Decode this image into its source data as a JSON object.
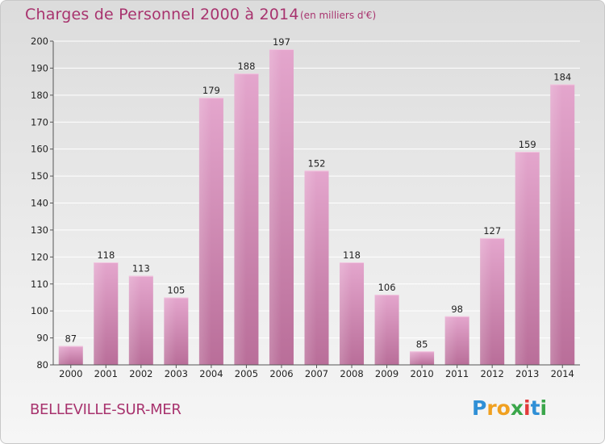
{
  "chart_data": {
    "type": "bar",
    "title": "Charges de Personnel 2000 à 2014",
    "subtitle": "(en milliers d'€)",
    "categories": [
      "2000",
      "2001",
      "2002",
      "2003",
      "2004",
      "2005",
      "2006",
      "2007",
      "2008",
      "2009",
      "2010",
      "2011",
      "2012",
      "2013",
      "2014"
    ],
    "values": [
      87,
      118,
      113,
      105,
      179,
      188,
      197,
      152,
      118,
      106,
      85,
      98,
      127,
      159,
      184
    ],
    "ylim": [
      80,
      200
    ],
    "yticks": [
      80,
      90,
      100,
      110,
      120,
      130,
      140,
      150,
      160,
      170,
      180,
      190,
      200
    ],
    "grid": true,
    "bar_color": "#d58ab8"
  },
  "commune": "BELLEVILLE-SUR-MER",
  "logo": {
    "text": "Proxiti",
    "letters": [
      {
        "ch": "P",
        "color": "#2f8fd6"
      },
      {
        "ch": "r",
        "color": "#f0a020"
      },
      {
        "ch": "o",
        "color": "#f0a020"
      },
      {
        "ch": "x",
        "color": "#3aa64a"
      },
      {
        "ch": "i",
        "color": "#e23b3b"
      },
      {
        "ch": "t",
        "color": "#2f8fd6"
      },
      {
        "ch": "i",
        "color": "#3aa64a"
      }
    ]
  }
}
